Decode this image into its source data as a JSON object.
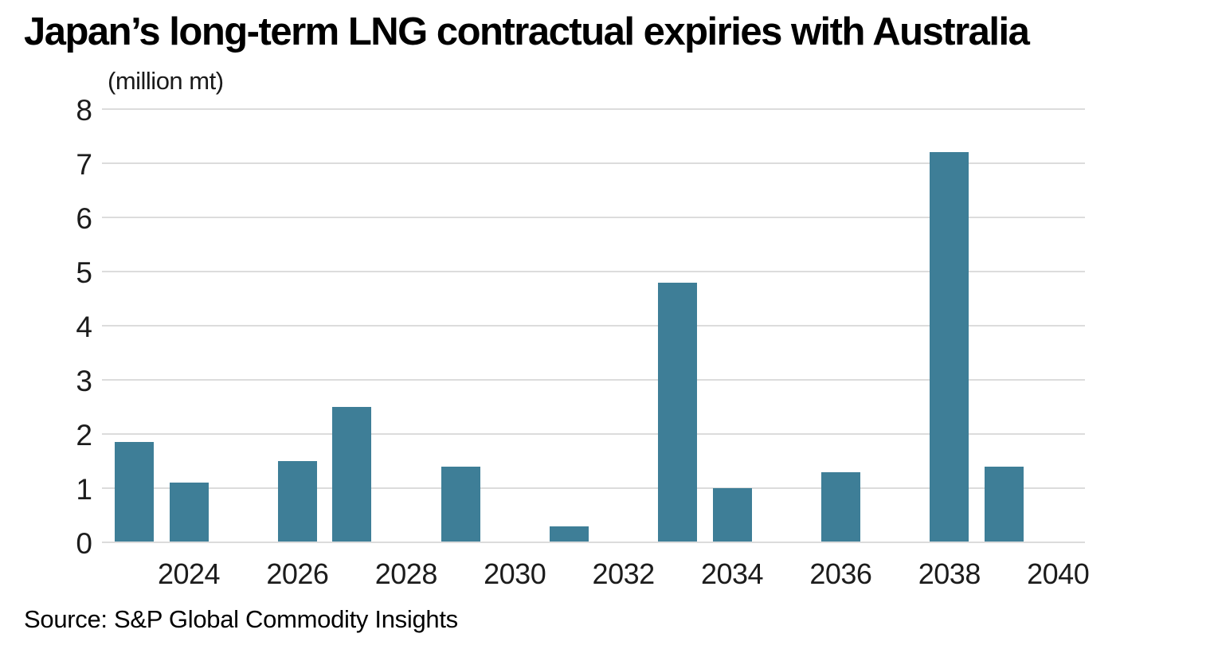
{
  "page": {
    "title": "Japan’s long-term LNG contractual expiries with Australia",
    "source": "Source: S&P Global Commodity Insights"
  },
  "chart_data": {
    "type": "bar",
    "title": "Japan’s long-term LNG contractual expiries with Australia",
    "unit_label": "(million mt)",
    "xlabel": "",
    "ylabel": "(million mt)",
    "ylim": [
      0,
      8
    ],
    "yticks": [
      0,
      1,
      2,
      3,
      4,
      5,
      6,
      7,
      8
    ],
    "xticks": [
      2024,
      2026,
      2028,
      2030,
      2032,
      2034,
      2036,
      2038,
      2040
    ],
    "grid": "horizontal-only",
    "legend": "none",
    "bar_color": "#3e7e97",
    "gridline_color": "#dcdcdc",
    "bars": [
      {
        "year": 2023,
        "value": 1.85
      },
      {
        "year": 2024,
        "value": 1.1
      },
      {
        "year": 2025,
        "value": 0
      },
      {
        "year": 2026,
        "value": 1.5
      },
      {
        "year": 2027,
        "value": 2.5
      },
      {
        "year": 2028,
        "value": 0
      },
      {
        "year": 2029,
        "value": 1.4
      },
      {
        "year": 2030,
        "value": 0
      },
      {
        "year": 2031,
        "value": 0.3
      },
      {
        "year": 2032,
        "value": 0
      },
      {
        "year": 2033,
        "value": 4.8
      },
      {
        "year": 2034,
        "value": 1.0
      },
      {
        "year": 2035,
        "value": 0
      },
      {
        "year": 2036,
        "value": 1.3
      },
      {
        "year": 2037,
        "value": 0
      },
      {
        "year": 2038,
        "value": 7.2
      },
      {
        "year": 2039,
        "value": 1.4
      },
      {
        "year": 2040,
        "value": 0
      }
    ]
  }
}
